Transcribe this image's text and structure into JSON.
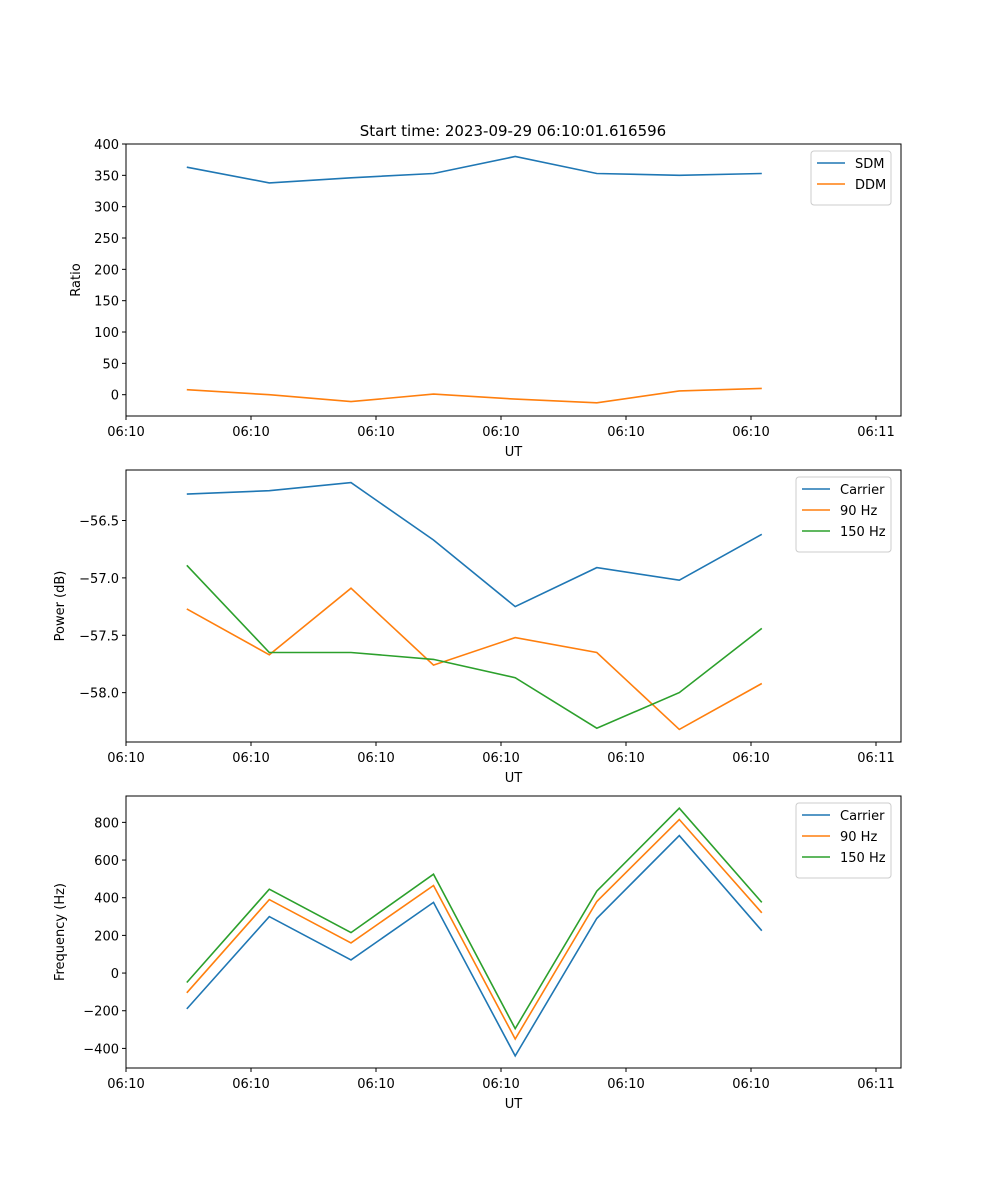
{
  "figure": {
    "title": "Start time: 2023-09-29 06:10:01.616596"
  },
  "chart_data": [
    {
      "type": "line",
      "xlabel": "UT",
      "ylabel": "Ratio",
      "xlim": [
        0,
        9.3
      ],
      "ylim": [
        -34,
        400
      ],
      "xticks": [
        0,
        1.5,
        3,
        4.5,
        6,
        7.5,
        9
      ],
      "xtick_labels": [
        "06:10",
        "06:10",
        "06:10",
        "06:10",
        "06:10",
        "06:10",
        "06:11"
      ],
      "yticks": [
        0,
        50,
        100,
        150,
        200,
        250,
        300,
        350,
        400
      ],
      "ytick_labels": [
        "0",
        "50",
        "100",
        "150",
        "200",
        "250",
        "300",
        "350",
        "400"
      ],
      "x": [
        0.73,
        1.72,
        2.7,
        3.69,
        4.67,
        5.65,
        6.64,
        7.63
      ],
      "series": [
        {
          "name": "SDM",
          "color": "#1f77b4",
          "values": [
            363,
            338,
            346,
            353,
            380,
            353,
            350,
            353
          ]
        },
        {
          "name": "DDM",
          "color": "#ff7f0e",
          "values": [
            8,
            0,
            -11,
            1,
            -7,
            -13,
            6,
            10
          ]
        }
      ],
      "legend": "top-right",
      "grid": false
    },
    {
      "type": "line",
      "xlabel": "UT",
      "ylabel": "Power (dB)",
      "xlim": [
        0,
        9.3
      ],
      "ylim": [
        -58.43,
        -56.06
      ],
      "xticks": [
        0,
        1.5,
        3,
        4.5,
        6,
        7.5,
        9
      ],
      "xtick_labels": [
        "06:10",
        "06:10",
        "06:10",
        "06:10",
        "06:10",
        "06:10",
        "06:11"
      ],
      "yticks": [
        -56.5,
        -57.0,
        -57.5,
        -58.0
      ],
      "ytick_labels": [
        "−56.5",
        "−57.0",
        "−57.5",
        "−58.0"
      ],
      "x": [
        0.73,
        1.72,
        2.7,
        3.69,
        4.67,
        5.65,
        6.64,
        7.63
      ],
      "series": [
        {
          "name": "Carrier",
          "color": "#1f77b4",
          "values": [
            -56.27,
            -56.24,
            -56.17,
            -56.67,
            -57.25,
            -56.91,
            -57.02,
            -56.62
          ]
        },
        {
          "name": "90 Hz",
          "color": "#ff7f0e",
          "values": [
            -57.27,
            -57.67,
            -57.09,
            -57.76,
            -57.52,
            -57.65,
            -58.32,
            -57.92
          ]
        },
        {
          "name": "150 Hz",
          "color": "#2ca02c",
          "values": [
            -56.89,
            -57.65,
            -57.65,
            -57.71,
            -57.87,
            -58.31,
            -58.0,
            -57.44
          ]
        }
      ],
      "legend": "top-right",
      "grid": false
    },
    {
      "type": "line",
      "xlabel": "UT",
      "ylabel": "Frequency (Hz)",
      "xlim": [
        0,
        9.3
      ],
      "ylim": [
        -504,
        940
      ],
      "xticks": [
        0,
        1.5,
        3,
        4.5,
        6,
        7.5,
        9
      ],
      "xtick_labels": [
        "06:10",
        "06:10",
        "06:10",
        "06:10",
        "06:10",
        "06:10",
        "06:11"
      ],
      "yticks": [
        -400,
        -200,
        0,
        200,
        400,
        600,
        800
      ],
      "ytick_labels": [
        "−400",
        "−200",
        "0",
        "200",
        "400",
        "600",
        "800"
      ],
      "x": [
        0.73,
        1.72,
        2.7,
        3.69,
        4.67,
        5.65,
        6.64,
        7.63
      ],
      "series": [
        {
          "name": "Carrier",
          "color": "#1f77b4",
          "values": [
            -190,
            300,
            70,
            375,
            -440,
            290,
            730,
            225
          ]
        },
        {
          "name": "90 Hz",
          "color": "#ff7f0e",
          "values": [
            -105,
            390,
            160,
            465,
            -350,
            380,
            815,
            320
          ]
        },
        {
          "name": "150 Hz",
          "color": "#2ca02c",
          "values": [
            -50,
            445,
            215,
            525,
            -295,
            435,
            875,
            375
          ]
        }
      ],
      "legend": "top-right",
      "grid": false
    }
  ]
}
